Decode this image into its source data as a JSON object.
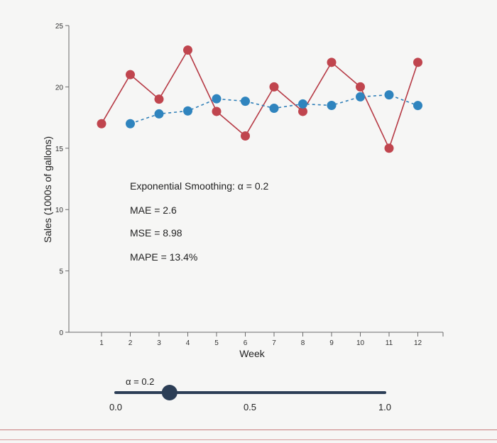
{
  "chart_data": {
    "type": "line",
    "title": "",
    "xlabel": "Week",
    "ylabel": "Sales (1000s of gallons)",
    "x": [
      1,
      2,
      3,
      4,
      5,
      6,
      7,
      8,
      9,
      10,
      11,
      12
    ],
    "xticks": [
      "1",
      "2",
      "3",
      "4",
      "5",
      "6",
      "7",
      "8",
      "9",
      "10",
      "11",
      "12"
    ],
    "yticks": [
      "0",
      "5",
      "10",
      "15",
      "20",
      "25"
    ],
    "ylim": [
      0,
      25
    ],
    "xlim": [
      0.5,
      12.9
    ],
    "grid": false,
    "series": [
      {
        "role": "actual",
        "style": "solid",
        "color": "#b63a45",
        "marker_color": "#c0454e",
        "values": [
          17,
          21,
          19,
          23,
          18,
          16,
          20,
          18,
          22,
          20,
          15,
          22
        ]
      },
      {
        "role": "forecast",
        "style": "dashed",
        "color": "#2f7fb8",
        "marker_color": "#2f84be",
        "values": [
          null,
          17.0,
          17.8,
          18.04,
          19.03,
          18.83,
          18.26,
          18.61,
          18.49,
          19.19,
          19.35,
          18.48
        ]
      }
    ],
    "annotations": {
      "method": "Exponential Smoothing: α = 0.2",
      "mae": "MAE = 2.6",
      "mse": "MSE = 8.98",
      "mape": "MAPE = 13.4%"
    }
  },
  "slider": {
    "label": "α = 0.2",
    "value": 0.2,
    "min": 0.0,
    "max": 1.0,
    "tick_labels": [
      "0.0",
      "0.5",
      "1.0"
    ],
    "track_color": "#2c3e56",
    "thumb_color": "#2c3e56"
  }
}
